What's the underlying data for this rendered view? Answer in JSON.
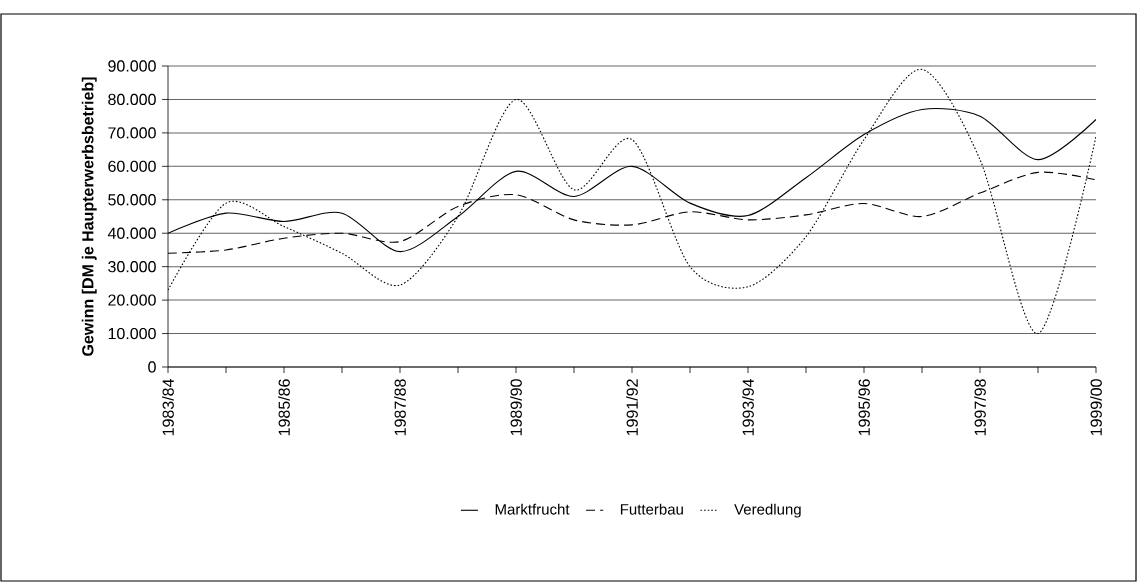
{
  "chart_data": {
    "type": "line",
    "ylabel": "Gewinn [DM je Haupterwerbsbetrieb]",
    "categories": [
      "1983/84",
      null,
      "1985/86",
      null,
      "1987/88",
      null,
      "1989/90",
      null,
      "1991/92",
      null,
      "1993/94",
      null,
      "1995/96",
      null,
      "1997/98",
      null,
      "1999/00"
    ],
    "series": [
      {
        "name": "Marktfrucht",
        "color": "#000000",
        "line_style": "solid",
        "values": [
          40000,
          46000,
          43500,
          46000,
          34500,
          45000,
          58500,
          51000,
          60000,
          49000,
          45300,
          56600,
          69500,
          77000,
          75000,
          62000,
          74000
        ]
      },
      {
        "name": "Futterbau",
        "color": "#000000",
        "line_style": "dashed",
        "values": [
          34000,
          35000,
          38500,
          40000,
          37500,
          48000,
          51500,
          44000,
          42500,
          46400,
          44000,
          45500,
          48900,
          45000,
          52000,
          58200,
          56000
        ]
      },
      {
        "name": "Veredlung",
        "color": "#000000",
        "line_style": "dotted",
        "values": [
          23000,
          49000,
          42000,
          34000,
          24500,
          45000,
          80000,
          53000,
          68000,
          30000,
          24000,
          39000,
          68000,
          89000,
          62000,
          10000,
          69000
        ]
      }
    ],
    "ylim": [
      0,
      90000
    ],
    "yticks": [
      0,
      {
        "value": 10000,
        "label": "10.000"
      },
      {
        "value": 20000,
        "label": "20.000"
      },
      {
        "value": 30000,
        "label": "30.000"
      },
      {
        "value": 40000,
        "label": "40.000"
      },
      {
        "value": 50000,
        "label": "50.000"
      },
      {
        "value": 60000,
        "label": "60.000"
      },
      {
        "value": 70000,
        "label": "70.000"
      },
      {
        "value": 80000,
        "label": "80.000"
      },
      {
        "value": 90000,
        "label": "90.000"
      }
    ],
    "grid": "y",
    "legend": "bottom",
    "marker": "none"
  }
}
